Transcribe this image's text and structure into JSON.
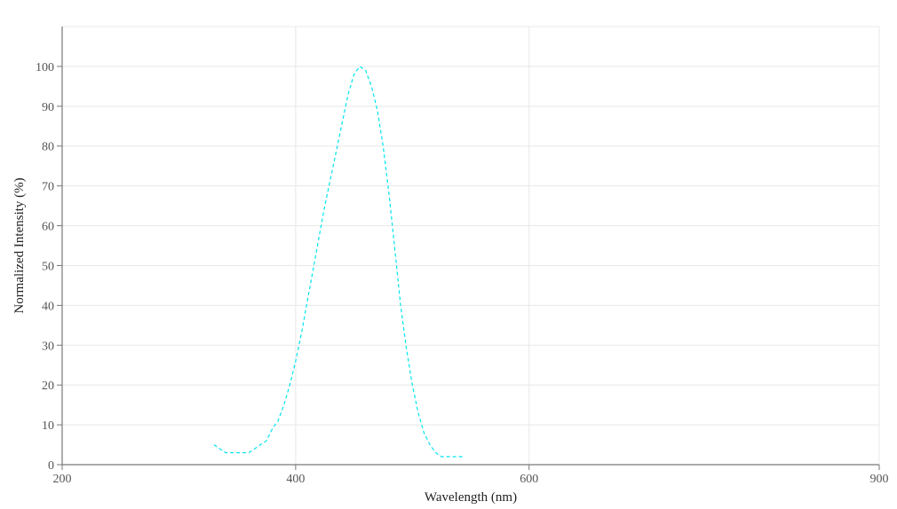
{
  "chart_data": {
    "type": "line",
    "xlabel": "Wavelength (nm)",
    "ylabel": "Normalized Intensity (%)",
    "xlim": [
      200,
      900
    ],
    "ylim": [
      0,
      110
    ],
    "x_ticks": [
      200,
      400,
      600,
      900
    ],
    "y_ticks": [
      0,
      10,
      20,
      30,
      40,
      50,
      60,
      70,
      80,
      90,
      100
    ],
    "grid": true,
    "series": [
      {
        "color": "#00e5ee",
        "line_style": "dashed",
        "x": [
          330,
          335,
          340,
          350,
          360,
          365,
          370,
          375,
          380,
          385,
          390,
          395,
          400,
          405,
          410,
          415,
          420,
          425,
          430,
          435,
          440,
          445,
          450,
          455,
          460,
          465,
          470,
          475,
          480,
          485,
          490,
          495,
          500,
          505,
          510,
          515,
          520,
          525,
          530,
          535,
          540,
          545
        ],
        "y": [
          5,
          4,
          3,
          3,
          3,
          4,
          5,
          6,
          9,
          11,
          15,
          20,
          26,
          33,
          41,
          49,
          57,
          65,
          72,
          79,
          86,
          93,
          98,
          100,
          99,
          95,
          89,
          80,
          68,
          54,
          40,
          29,
          20,
          13,
          8,
          5,
          3,
          2,
          2,
          2,
          2,
          2
        ]
      }
    ]
  }
}
